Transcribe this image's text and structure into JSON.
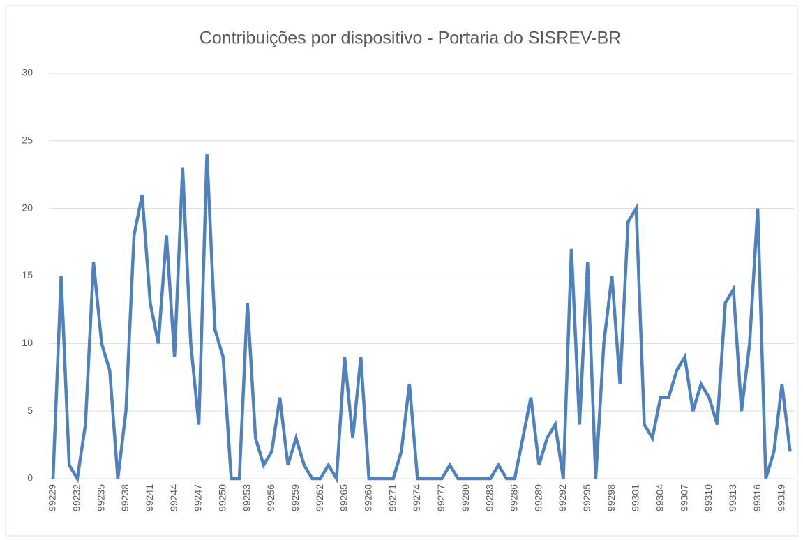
{
  "chart_data": {
    "type": "line",
    "title": "Contribuições por dispositivo - Portaria do SISREV-BR",
    "categories": [
      "99229",
      null,
      null,
      "99232",
      null,
      null,
      "99235",
      null,
      null,
      "99238",
      null,
      null,
      "99241",
      null,
      null,
      "99244",
      null,
      null,
      "99247",
      null,
      null,
      "99250",
      null,
      null,
      "99253",
      null,
      null,
      "99256",
      null,
      null,
      "99259",
      null,
      null,
      "99262",
      null,
      null,
      "99265",
      null,
      null,
      "99268",
      null,
      null,
      "99271",
      null,
      null,
      "99274",
      null,
      null,
      "99277",
      null,
      null,
      "99280",
      null,
      null,
      "99283",
      null,
      null,
      "99286",
      null,
      null,
      "99289",
      null,
      null,
      "99292",
      null,
      null,
      "99295",
      null,
      null,
      "99298",
      null,
      null,
      "99301",
      null,
      null,
      "99304",
      null,
      null,
      "99307",
      null,
      null,
      "99310",
      null,
      null,
      "99313",
      null,
      null,
      "99316",
      null,
      null,
      "99319",
      null
    ],
    "series": [
      {
        "name": "Contribuições",
        "color": "#4f81bd",
        "values": [
          0,
          15,
          1,
          0,
          4,
          16,
          10,
          8,
          0,
          5,
          18,
          21,
          13,
          10,
          18,
          9,
          23,
          10,
          4,
          24,
          11,
          9,
          0,
          0,
          13,
          3,
          1,
          2,
          6,
          1,
          3,
          1,
          0,
          0,
          1,
          0,
          9,
          3,
          9,
          0,
          0,
          0,
          0,
          2,
          7,
          0,
          0,
          0,
          0,
          1,
          0,
          0,
          0,
          0,
          0,
          1,
          0,
          0,
          3,
          6,
          1,
          3,
          4,
          0,
          17,
          4,
          16,
          0,
          10,
          15,
          7,
          19,
          20,
          4,
          3,
          6,
          6,
          8,
          9,
          5,
          7,
          6,
          4,
          13,
          14,
          5,
          10,
          20,
          0,
          2,
          7,
          2
        ]
      }
    ],
    "ylim": [
      0,
      30
    ],
    "yticks": [
      0,
      5,
      10,
      15,
      20,
      25,
      30
    ],
    "grid": true
  }
}
